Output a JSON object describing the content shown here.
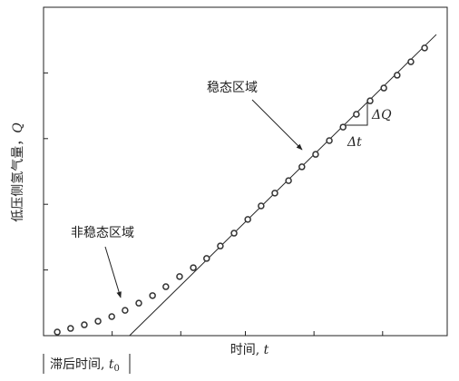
{
  "chart_data": {
    "type": "scatter",
    "ylabel": "低压侧氢气量，",
    "ylabel_symbol": "Q",
    "xlabel": "时间,",
    "xlabel_symbol": "t",
    "x": [
      3.4,
      6.7,
      10.1,
      13.5,
      16.9,
      20.2,
      23.6,
      27,
      30.3,
      33.7,
      37.1,
      40.4,
      43.8,
      47.2,
      50.6,
      53.9,
      57.3,
      60.7,
      64,
      67.4,
      70.8,
      74.2,
      77.5,
      80.9,
      84.3,
      87.6,
      91,
      94.4
    ],
    "values": [
      1.1,
      2.2,
      3.3,
      4.4,
      5.8,
      7.7,
      9.9,
      12.2,
      14.9,
      18.0,
      20.7,
      23.5,
      27.3,
      31.2,
      35.4,
      39.5,
      43.4,
      47.2,
      51.4,
      55.2,
      59.4,
      63.5,
      67.4,
      71.5,
      75.4,
      79.3,
      83.4,
      87.6
    ],
    "fit_line": {
      "x": [
        21.3,
        97.3
      ],
      "values": [
        0,
        91.7
      ]
    },
    "xlim": [
      0,
      100
    ],
    "ylim": [
      0,
      100
    ],
    "xticks": [
      17,
      34,
      50,
      67,
      84
    ],
    "yticks": [
      20,
      40,
      60,
      80
    ],
    "annotations": {
      "steady": "稳态区域",
      "unsteady": "非稳态区域",
      "delta_q": "ΔQ",
      "delta_t": "Δt",
      "lag_label": "滞后时间,",
      "lag_symbol": "t",
      "lag_subscript": "0"
    }
  }
}
